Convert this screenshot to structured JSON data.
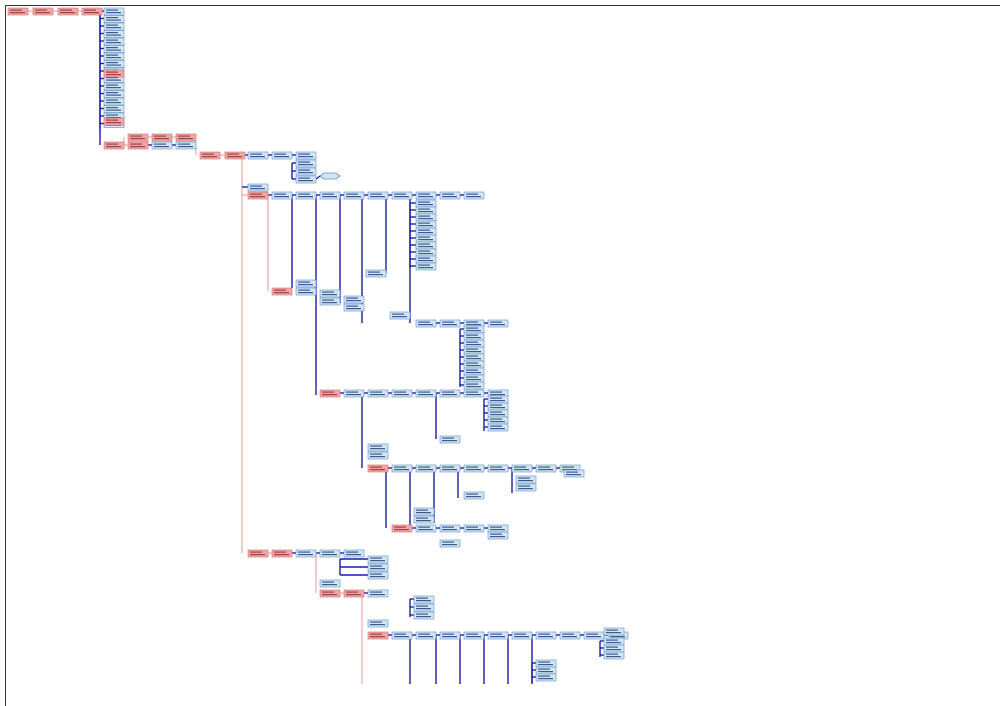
{
  "diagram": {
    "type": "network-diagram",
    "colors": {
      "critical_fill": "#f3a8a8",
      "critical_border": "#d46a6a",
      "critical_link": "#e49a9a",
      "task_fill": "#d3e6f5",
      "task_border": "#5b8fc4",
      "task_link": "#1c1ca8",
      "milestone_fill": "#d3e6f5"
    }
  }
}
